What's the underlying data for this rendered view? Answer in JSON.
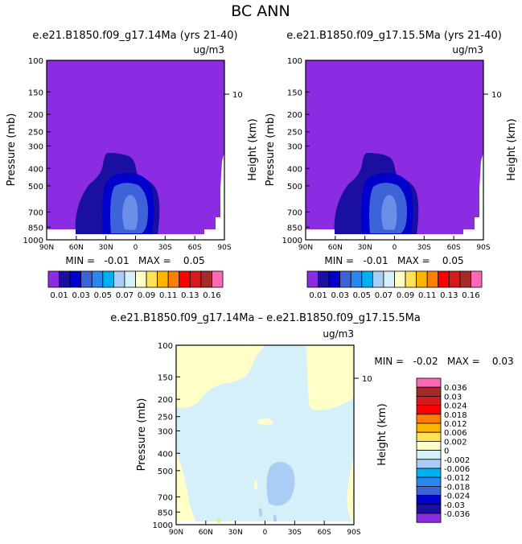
{
  "page_title": "BC ANN",
  "panel1": {
    "title": "e.e21.B1850.f09_g17.14Ma (yrs 21-40)",
    "units": "ug/m3",
    "min_max": "MIN =   -0.01   MAX =    0.05"
  },
  "panel2": {
    "title": "e.e21.B1850.f09_g17.15.5Ma (yrs 21-40)",
    "units": "ug/m3",
    "min_max": "MIN =   -0.01   MAX =    0.05"
  },
  "panel3": {
    "title": "e.e21.B1850.f09_g17.14Ma – e.e21.B1850.f09_g17.15.5Ma",
    "units": "ug/m3",
    "min_max": "MIN =   -0.02   MAX =    0.03"
  },
  "axes": {
    "ylabel": "Pressure (mb)",
    "ylabel_right": "Height (km)",
    "height_tick": "10",
    "pressure_ticks": [
      "100",
      "150",
      "200",
      "250",
      "300",
      "400",
      "500",
      "700",
      "850",
      "1000"
    ],
    "lat_ticks": [
      "90N",
      "60N",
      "30N",
      "0",
      "30S",
      "60S",
      "90S"
    ]
  },
  "colorbar_top": {
    "colors": [
      "#8b2be2",
      "#1a0fa0",
      "#0000cc",
      "#3d63d9",
      "#2b87f0",
      "#00b0f0",
      "#a9cdf5",
      "#d6f0fa",
      "#ffffc8",
      "#ffe15a",
      "#ffb400",
      "#ff7d00",
      "#ff0000",
      "#d41a1a",
      "#a52a2a",
      "#ff69b4"
    ],
    "labels": [
      "0.01",
      "0.03",
      "0.05",
      "0.07",
      "0.09",
      "0.11",
      "0.13",
      "0.16"
    ]
  },
  "colorbar_diff": {
    "colors": [
      "#8b2be2",
      "#1a0fa0",
      "#0000cc",
      "#3d63d9",
      "#2b87f0",
      "#00b0f0",
      "#a9cdf5",
      "#d6f0fa",
      "#ffffc8",
      "#ffe15a",
      "#ffb400",
      "#ff7d00",
      "#ff0000",
      "#d41a1a",
      "#a52a2a",
      "#ff69b4"
    ],
    "labels": [
      "-0.036",
      "-0.03",
      "-0.024",
      "-0.018",
      "-0.012",
      "-0.006",
      "-0.002",
      "0",
      "0.002",
      "0.006",
      "0.012",
      "0.018",
      "0.024",
      "0.03",
      "0.036"
    ]
  },
  "chart_data": [
    {
      "type": "heatmap",
      "title": "e.e21.B1850.f09_g17.14Ma (yrs 21-40)",
      "xlabel": "",
      "ylabel": "Pressure (mb)",
      "x_ticks": [
        "90N",
        "60N",
        "30N",
        "0",
        "30S",
        "60S",
        "90S"
      ],
      "y_ticks": [
        100,
        150,
        200,
        250,
        300,
        400,
        500,
        700,
        850,
        1000
      ],
      "ylim": [
        1000,
        100
      ],
      "y_scale": "log",
      "units": "ug/m3",
      "min": -0.01,
      "max": 0.05,
      "levels": [
        0.01,
        0.02,
        0.03,
        0.04,
        0.05,
        0.06,
        0.07,
        0.08,
        0.09,
        0.1,
        0.11,
        0.12,
        0.13,
        0.14,
        0.16
      ]
    },
    {
      "type": "heatmap",
      "title": "e.e21.B1850.f09_g17.15.5Ma (yrs 21-40)",
      "xlabel": "",
      "ylabel": "Pressure (mb)",
      "x_ticks": [
        "90N",
        "60N",
        "30N",
        "0",
        "30S",
        "60S",
        "90S"
      ],
      "y_ticks": [
        100,
        150,
        200,
        250,
        300,
        400,
        500,
        700,
        850,
        1000
      ],
      "ylim": [
        1000,
        100
      ],
      "y_scale": "log",
      "units": "ug/m3",
      "min": -0.01,
      "max": 0.05,
      "levels": [
        0.01,
        0.02,
        0.03,
        0.04,
        0.05,
        0.06,
        0.07,
        0.08,
        0.09,
        0.1,
        0.11,
        0.12,
        0.13,
        0.14,
        0.16
      ]
    },
    {
      "type": "heatmap",
      "title": "e.e21.B1850.f09_g17.14Ma – e.e21.B1850.f09_g17.15.5Ma",
      "xlabel": "",
      "ylabel": "Pressure (mb)",
      "x_ticks": [
        "90N",
        "60N",
        "30N",
        "0",
        "30S",
        "60S",
        "90S"
      ],
      "y_ticks": [
        100,
        150,
        200,
        250,
        300,
        400,
        500,
        700,
        850,
        1000
      ],
      "ylim": [
        1000,
        100
      ],
      "y_scale": "log",
      "units": "ug/m3",
      "min": -0.02,
      "max": 0.03,
      "levels": [
        -0.036,
        -0.03,
        -0.024,
        -0.018,
        -0.012,
        -0.006,
        -0.002,
        0,
        0.002,
        0.006,
        0.012,
        0.018,
        0.024,
        0.03,
        0.036
      ]
    }
  ]
}
